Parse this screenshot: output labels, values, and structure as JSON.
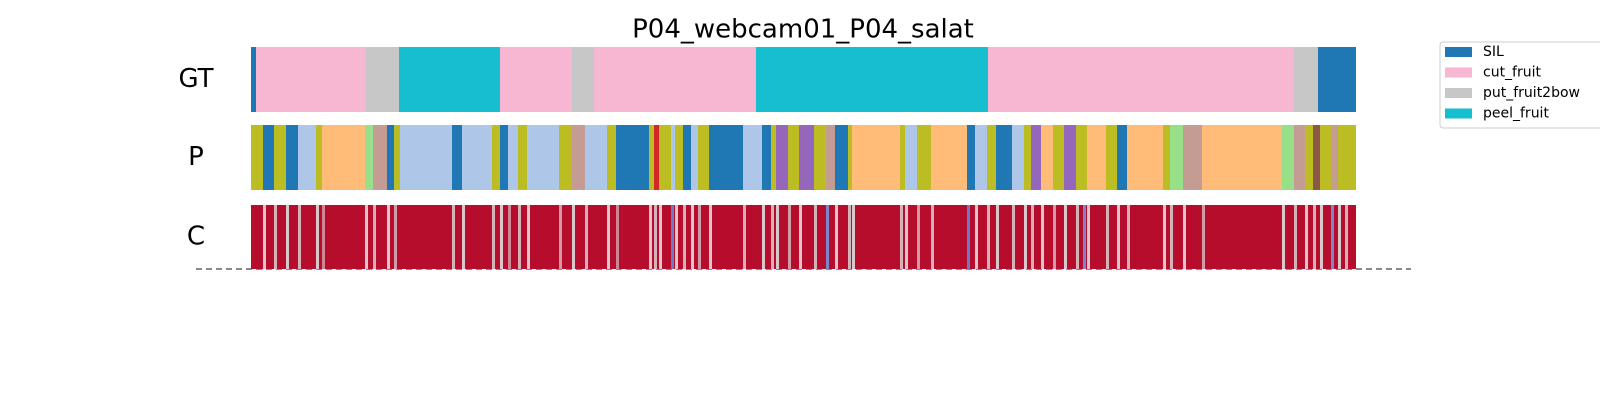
{
  "chart_data": {
    "type": "segmentation",
    "title": "P04_webcam01_P04_salat",
    "xlim": [
      0,
      1105
    ],
    "rows": [
      "GT",
      "P",
      "C"
    ],
    "legend": [
      {
        "name": "SIL",
        "color": "#1f77b4"
      },
      {
        "name": "cut_fruit",
        "color": "#f7b6d2"
      },
      {
        "name": "put_fruit2bow",
        "color": "#c7c7c7"
      },
      {
        "name": "peel_fruit",
        "color": "#17becf"
      }
    ],
    "gt": [
      [
        0,
        5,
        0
      ],
      [
        5,
        115,
        1
      ],
      [
        115,
        148,
        2
      ],
      [
        148,
        249,
        3
      ],
      [
        249,
        321,
        1
      ],
      [
        321,
        343,
        2
      ],
      [
        343,
        505,
        1
      ],
      [
        505,
        737,
        3
      ],
      [
        737,
        1043,
        1
      ],
      [
        1043,
        1067,
        2
      ],
      [
        1067,
        1105,
        0
      ]
    ],
    "p": [
      [
        0,
        12,
        "#bcbd22"
      ],
      [
        12,
        23,
        "#1f77b4"
      ],
      [
        23,
        35,
        "#bcbd22"
      ],
      [
        35,
        47,
        "#1f77b4"
      ],
      [
        47,
        65,
        "#aec7e8"
      ],
      [
        65,
        71,
        "#bcbd22"
      ],
      [
        71,
        114,
        "#ffbb78"
      ],
      [
        114,
        122,
        "#98df8a"
      ],
      [
        122,
        136,
        "#c49c94"
      ],
      [
        136,
        143,
        "#1f77b4"
      ],
      [
        143,
        149,
        "#bcbd22"
      ],
      [
        149,
        201,
        "#aec7e8"
      ],
      [
        201,
        211,
        "#1f77b4"
      ],
      [
        211,
        241,
        "#aec7e8"
      ],
      [
        241,
        249,
        "#bcbd22"
      ],
      [
        249,
        257,
        "#1f77b4"
      ],
      [
        257,
        267,
        "#aec7e8"
      ],
      [
        267,
        276,
        "#bcbd22"
      ],
      [
        276,
        308,
        "#aec7e8"
      ],
      [
        308,
        321,
        "#bcbd22"
      ],
      [
        321,
        334,
        "#c49c94"
      ],
      [
        334,
        356,
        "#aec7e8"
      ],
      [
        356,
        365,
        "#bcbd22"
      ],
      [
        365,
        398,
        "#1f77b4"
      ],
      [
        398,
        403,
        "#bcbd22"
      ],
      [
        403,
        408,
        "#d62728"
      ],
      [
        408,
        420,
        "#bcbd22"
      ],
      [
        420,
        424,
        "#aec7e8"
      ],
      [
        424,
        432,
        "#bcbd22"
      ],
      [
        432,
        440,
        "#1f77b4"
      ],
      [
        440,
        447,
        "#aec7e8"
      ],
      [
        447,
        458,
        "#bcbd22"
      ],
      [
        458,
        492,
        "#1f77b4"
      ],
      [
        492,
        511,
        "#aec7e8"
      ],
      [
        511,
        520,
        "#1f77b4"
      ],
      [
        520,
        525,
        "#bcbd22"
      ],
      [
        525,
        537,
        "#9467bd"
      ],
      [
        537,
        548,
        "#bcbd22"
      ],
      [
        548,
        563,
        "#9467bd"
      ],
      [
        563,
        575,
        "#bcbd22"
      ],
      [
        575,
        584,
        "#c49c94"
      ],
      [
        584,
        597,
        "#1f77b4"
      ],
      [
        597,
        601,
        "#bcbd22"
      ],
      [
        601,
        649,
        "#ffbb78"
      ],
      [
        649,
        654,
        "#bcbd22"
      ],
      [
        654,
        666,
        "#aec7e8"
      ],
      [
        666,
        680,
        "#bcbd22"
      ],
      [
        680,
        716,
        "#ffbb78"
      ],
      [
        716,
        724,
        "#1f77b4"
      ],
      [
        724,
        736,
        "#aec7e8"
      ],
      [
        736,
        745,
        "#bcbd22"
      ],
      [
        745,
        761,
        "#1f77b4"
      ],
      [
        761,
        773,
        "#aec7e8"
      ],
      [
        773,
        780,
        "#bcbd22"
      ],
      [
        780,
        790,
        "#9467bd"
      ],
      [
        790,
        802,
        "#ffbb78"
      ],
      [
        802,
        813,
        "#bcbd22"
      ],
      [
        813,
        825,
        "#9467bd"
      ],
      [
        825,
        836,
        "#bcbd22"
      ],
      [
        836,
        855,
        "#ffbb78"
      ],
      [
        855,
        866,
        "#bcbd22"
      ],
      [
        866,
        876,
        "#1f77b4"
      ],
      [
        876,
        912,
        "#ffbb78"
      ],
      [
        912,
        919,
        "#bcbd22"
      ],
      [
        919,
        932,
        "#98df8a"
      ],
      [
        932,
        951,
        "#c49c94"
      ],
      [
        951,
        1031,
        "#ffbb78"
      ],
      [
        1031,
        1043,
        "#98df8a"
      ],
      [
        1043,
        1054,
        "#c49c94"
      ],
      [
        1054,
        1062,
        "#bcbd22"
      ],
      [
        1062,
        1069,
        "#8c564b"
      ],
      [
        1069,
        1080,
        "#bcbd22"
      ],
      [
        1080,
        1087,
        "#c49c94"
      ],
      [
        1087,
        1105,
        "#bcbd22"
      ]
    ],
    "c": [
      [
        0,
        1105,
        0.98
      ],
      [
        12,
        15,
        0.55
      ],
      [
        23,
        26,
        0.6
      ],
      [
        35,
        38,
        0.55
      ],
      [
        47,
        50,
        0.6
      ],
      [
        65,
        68,
        0.55
      ],
      [
        71,
        74,
        0.7
      ],
      [
        114,
        117,
        0.55
      ],
      [
        122,
        125,
        0.6
      ],
      [
        136,
        139,
        0.55
      ],
      [
        143,
        146,
        0.65
      ],
      [
        201,
        204,
        0.6
      ],
      [
        211,
        214,
        0.55
      ],
      [
        241,
        244,
        0.6
      ],
      [
        249,
        252,
        0.55
      ],
      [
        257,
        260,
        0.7
      ],
      [
        267,
        270,
        0.6
      ],
      [
        276,
        279,
        0.55
      ],
      [
        308,
        311,
        0.65
      ],
      [
        321,
        324,
        0.55
      ],
      [
        334,
        337,
        0.6
      ],
      [
        356,
        359,
        0.55
      ],
      [
        365,
        368,
        0.7
      ],
      [
        398,
        401,
        0.55
      ],
      [
        403,
        406,
        0.6
      ],
      [
        408,
        411,
        0.55
      ],
      [
        420,
        423,
        0.15
      ],
      [
        424,
        427,
        0.55
      ],
      [
        432,
        435,
        0.6
      ],
      [
        440,
        443,
        0.55
      ],
      [
        447,
        450,
        0.65
      ],
      [
        458,
        461,
        0.55
      ],
      [
        492,
        495,
        0.6
      ],
      [
        511,
        514,
        0.55
      ],
      [
        520,
        523,
        0.6
      ],
      [
        525,
        528,
        0.55
      ],
      [
        537,
        540,
        0.65
      ],
      [
        548,
        551,
        0.55
      ],
      [
        563,
        566,
        0.6
      ],
      [
        575,
        578,
        0.2
      ],
      [
        584,
        587,
        0.55
      ],
      [
        597,
        600,
        0.6
      ],
      [
        601,
        604,
        0.55
      ],
      [
        649,
        652,
        0.6
      ],
      [
        654,
        657,
        0.55
      ],
      [
        666,
        669,
        0.65
      ],
      [
        680,
        683,
        0.6
      ],
      [
        716,
        719,
        0.15
      ],
      [
        724,
        727,
        0.55
      ],
      [
        736,
        739,
        0.6
      ],
      [
        745,
        748,
        0.55
      ],
      [
        761,
        764,
        0.6
      ],
      [
        773,
        776,
        0.55
      ],
      [
        780,
        783,
        0.6
      ],
      [
        790,
        793,
        0.55
      ],
      [
        802,
        805,
        0.65
      ],
      [
        813,
        816,
        0.55
      ],
      [
        825,
        828,
        0.6
      ],
      [
        832,
        835,
        0.2
      ],
      [
        836,
        839,
        0.55
      ],
      [
        855,
        858,
        0.6
      ],
      [
        866,
        869,
        0.55
      ],
      [
        876,
        879,
        0.6
      ],
      [
        912,
        915,
        0.55
      ],
      [
        919,
        922,
        0.6
      ],
      [
        932,
        935,
        0.55
      ],
      [
        951,
        954,
        0.65
      ],
      [
        1031,
        1034,
        0.55
      ],
      [
        1043,
        1046,
        0.6
      ],
      [
        1054,
        1057,
        0.55
      ],
      [
        1062,
        1065,
        0.6
      ],
      [
        1069,
        1072,
        0.55
      ],
      [
        1080,
        1083,
        0.2
      ],
      [
        1087,
        1090,
        0.55
      ],
      [
        1094,
        1097,
        0.6
      ]
    ]
  }
}
